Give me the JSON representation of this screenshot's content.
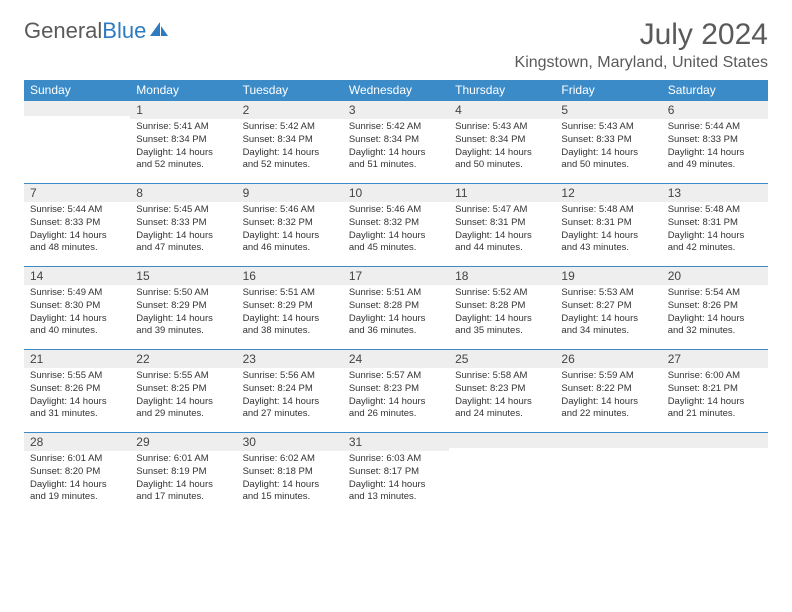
{
  "brand": {
    "part1": "General",
    "part2": "Blue"
  },
  "title": "July 2024",
  "location": "Kingstown, Maryland, United States",
  "colors": {
    "header_bg": "#3b8bc9",
    "header_text": "#ffffff",
    "daynum_bg": "#eeeeee",
    "border": "#3b8bc9",
    "text": "#333333",
    "title_text": "#5a5a5a"
  },
  "dayNames": [
    "Sunday",
    "Monday",
    "Tuesday",
    "Wednesday",
    "Thursday",
    "Friday",
    "Saturday"
  ],
  "weeks": [
    [
      {
        "n": "",
        "sunrise": "",
        "sunset": "",
        "daylight": ""
      },
      {
        "n": "1",
        "sunrise": "Sunrise: 5:41 AM",
        "sunset": "Sunset: 8:34 PM",
        "daylight": "Daylight: 14 hours and 52 minutes."
      },
      {
        "n": "2",
        "sunrise": "Sunrise: 5:42 AM",
        "sunset": "Sunset: 8:34 PM",
        "daylight": "Daylight: 14 hours and 52 minutes."
      },
      {
        "n": "3",
        "sunrise": "Sunrise: 5:42 AM",
        "sunset": "Sunset: 8:34 PM",
        "daylight": "Daylight: 14 hours and 51 minutes."
      },
      {
        "n": "4",
        "sunrise": "Sunrise: 5:43 AM",
        "sunset": "Sunset: 8:34 PM",
        "daylight": "Daylight: 14 hours and 50 minutes."
      },
      {
        "n": "5",
        "sunrise": "Sunrise: 5:43 AM",
        "sunset": "Sunset: 8:33 PM",
        "daylight": "Daylight: 14 hours and 50 minutes."
      },
      {
        "n": "6",
        "sunrise": "Sunrise: 5:44 AM",
        "sunset": "Sunset: 8:33 PM",
        "daylight": "Daylight: 14 hours and 49 minutes."
      }
    ],
    [
      {
        "n": "7",
        "sunrise": "Sunrise: 5:44 AM",
        "sunset": "Sunset: 8:33 PM",
        "daylight": "Daylight: 14 hours and 48 minutes."
      },
      {
        "n": "8",
        "sunrise": "Sunrise: 5:45 AM",
        "sunset": "Sunset: 8:33 PM",
        "daylight": "Daylight: 14 hours and 47 minutes."
      },
      {
        "n": "9",
        "sunrise": "Sunrise: 5:46 AM",
        "sunset": "Sunset: 8:32 PM",
        "daylight": "Daylight: 14 hours and 46 minutes."
      },
      {
        "n": "10",
        "sunrise": "Sunrise: 5:46 AM",
        "sunset": "Sunset: 8:32 PM",
        "daylight": "Daylight: 14 hours and 45 minutes."
      },
      {
        "n": "11",
        "sunrise": "Sunrise: 5:47 AM",
        "sunset": "Sunset: 8:31 PM",
        "daylight": "Daylight: 14 hours and 44 minutes."
      },
      {
        "n": "12",
        "sunrise": "Sunrise: 5:48 AM",
        "sunset": "Sunset: 8:31 PM",
        "daylight": "Daylight: 14 hours and 43 minutes."
      },
      {
        "n": "13",
        "sunrise": "Sunrise: 5:48 AM",
        "sunset": "Sunset: 8:31 PM",
        "daylight": "Daylight: 14 hours and 42 minutes."
      }
    ],
    [
      {
        "n": "14",
        "sunrise": "Sunrise: 5:49 AM",
        "sunset": "Sunset: 8:30 PM",
        "daylight": "Daylight: 14 hours and 40 minutes."
      },
      {
        "n": "15",
        "sunrise": "Sunrise: 5:50 AM",
        "sunset": "Sunset: 8:29 PM",
        "daylight": "Daylight: 14 hours and 39 minutes."
      },
      {
        "n": "16",
        "sunrise": "Sunrise: 5:51 AM",
        "sunset": "Sunset: 8:29 PM",
        "daylight": "Daylight: 14 hours and 38 minutes."
      },
      {
        "n": "17",
        "sunrise": "Sunrise: 5:51 AM",
        "sunset": "Sunset: 8:28 PM",
        "daylight": "Daylight: 14 hours and 36 minutes."
      },
      {
        "n": "18",
        "sunrise": "Sunrise: 5:52 AM",
        "sunset": "Sunset: 8:28 PM",
        "daylight": "Daylight: 14 hours and 35 minutes."
      },
      {
        "n": "19",
        "sunrise": "Sunrise: 5:53 AM",
        "sunset": "Sunset: 8:27 PM",
        "daylight": "Daylight: 14 hours and 34 minutes."
      },
      {
        "n": "20",
        "sunrise": "Sunrise: 5:54 AM",
        "sunset": "Sunset: 8:26 PM",
        "daylight": "Daylight: 14 hours and 32 minutes."
      }
    ],
    [
      {
        "n": "21",
        "sunrise": "Sunrise: 5:55 AM",
        "sunset": "Sunset: 8:26 PM",
        "daylight": "Daylight: 14 hours and 31 minutes."
      },
      {
        "n": "22",
        "sunrise": "Sunrise: 5:55 AM",
        "sunset": "Sunset: 8:25 PM",
        "daylight": "Daylight: 14 hours and 29 minutes."
      },
      {
        "n": "23",
        "sunrise": "Sunrise: 5:56 AM",
        "sunset": "Sunset: 8:24 PM",
        "daylight": "Daylight: 14 hours and 27 minutes."
      },
      {
        "n": "24",
        "sunrise": "Sunrise: 5:57 AM",
        "sunset": "Sunset: 8:23 PM",
        "daylight": "Daylight: 14 hours and 26 minutes."
      },
      {
        "n": "25",
        "sunrise": "Sunrise: 5:58 AM",
        "sunset": "Sunset: 8:23 PM",
        "daylight": "Daylight: 14 hours and 24 minutes."
      },
      {
        "n": "26",
        "sunrise": "Sunrise: 5:59 AM",
        "sunset": "Sunset: 8:22 PM",
        "daylight": "Daylight: 14 hours and 22 minutes."
      },
      {
        "n": "27",
        "sunrise": "Sunrise: 6:00 AM",
        "sunset": "Sunset: 8:21 PM",
        "daylight": "Daylight: 14 hours and 21 minutes."
      }
    ],
    [
      {
        "n": "28",
        "sunrise": "Sunrise: 6:01 AM",
        "sunset": "Sunset: 8:20 PM",
        "daylight": "Daylight: 14 hours and 19 minutes."
      },
      {
        "n": "29",
        "sunrise": "Sunrise: 6:01 AM",
        "sunset": "Sunset: 8:19 PM",
        "daylight": "Daylight: 14 hours and 17 minutes."
      },
      {
        "n": "30",
        "sunrise": "Sunrise: 6:02 AM",
        "sunset": "Sunset: 8:18 PM",
        "daylight": "Daylight: 14 hours and 15 minutes."
      },
      {
        "n": "31",
        "sunrise": "Sunrise: 6:03 AM",
        "sunset": "Sunset: 8:17 PM",
        "daylight": "Daylight: 14 hours and 13 minutes."
      },
      {
        "n": "",
        "sunrise": "",
        "sunset": "",
        "daylight": ""
      },
      {
        "n": "",
        "sunrise": "",
        "sunset": "",
        "daylight": ""
      },
      {
        "n": "",
        "sunrise": "",
        "sunset": "",
        "daylight": ""
      }
    ]
  ]
}
